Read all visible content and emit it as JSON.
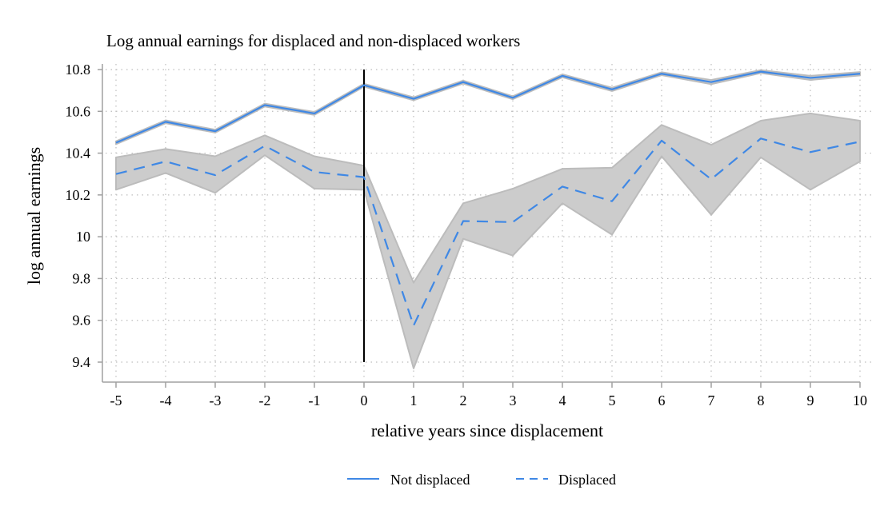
{
  "chart_data": {
    "type": "line",
    "title": "Log annual earnings for displaced and non-displaced workers",
    "xlabel": "relative years since displacement",
    "ylabel": "log annual earnings",
    "xlim": [
      -5,
      10
    ],
    "ylim": [
      9.4,
      10.8
    ],
    "x": [
      -5,
      -4,
      -3,
      -2,
      -1,
      0,
      1,
      2,
      3,
      4,
      5,
      6,
      7,
      8,
      9,
      10
    ],
    "xticks": [
      "-5",
      "-4",
      "-3",
      "-2",
      "-1",
      "0",
      "1",
      "2",
      "3",
      "4",
      "5",
      "6",
      "7",
      "8",
      "9",
      "10"
    ],
    "yticks": [
      "9.4",
      "9.6",
      "9.8",
      "10",
      "10.2",
      "10.4",
      "10.6",
      "10.8"
    ],
    "ytick_values": [
      9.4,
      9.6,
      9.8,
      10,
      10.2,
      10.4,
      10.6,
      10.8
    ],
    "grid": true,
    "vertical_reference_line_x": 0,
    "legend_position": "bottom",
    "series": [
      {
        "name": "Not displaced",
        "style": "solid",
        "color": "#3f88e5",
        "values": [
          10.45,
          10.55,
          10.505,
          10.63,
          10.59,
          10.725,
          10.66,
          10.74,
          10.665,
          10.77,
          10.705,
          10.78,
          10.74,
          10.79,
          10.76,
          10.78
        ],
        "ci_upper": [
          10.457,
          10.557,
          10.512,
          10.637,
          10.597,
          10.732,
          10.667,
          10.747,
          10.672,
          10.777,
          10.713,
          10.787,
          10.75,
          10.797,
          10.77,
          10.788
        ],
        "ci_lower": [
          10.443,
          10.543,
          10.498,
          10.623,
          10.583,
          10.718,
          10.653,
          10.733,
          10.658,
          10.763,
          10.697,
          10.773,
          10.73,
          10.783,
          10.75,
          10.772
        ]
      },
      {
        "name": "Displaced",
        "style": "dashed",
        "color": "#3f88e5",
        "values": [
          10.3,
          10.36,
          10.295,
          10.435,
          10.31,
          10.285,
          9.575,
          10.075,
          10.07,
          10.24,
          10.17,
          10.46,
          10.275,
          10.47,
          10.405,
          10.455
        ],
        "ci_upper": [
          10.38,
          10.42,
          10.385,
          10.485,
          10.385,
          10.34,
          9.78,
          10.16,
          10.23,
          10.325,
          10.33,
          10.535,
          10.44,
          10.555,
          10.59,
          10.555
        ],
        "ci_lower": [
          10.225,
          10.305,
          10.21,
          10.39,
          10.23,
          10.225,
          9.37,
          9.99,
          9.91,
          10.16,
          10.01,
          10.385,
          10.105,
          10.38,
          10.225,
          10.36
        ]
      }
    ],
    "ci_color": "#cccccc"
  }
}
